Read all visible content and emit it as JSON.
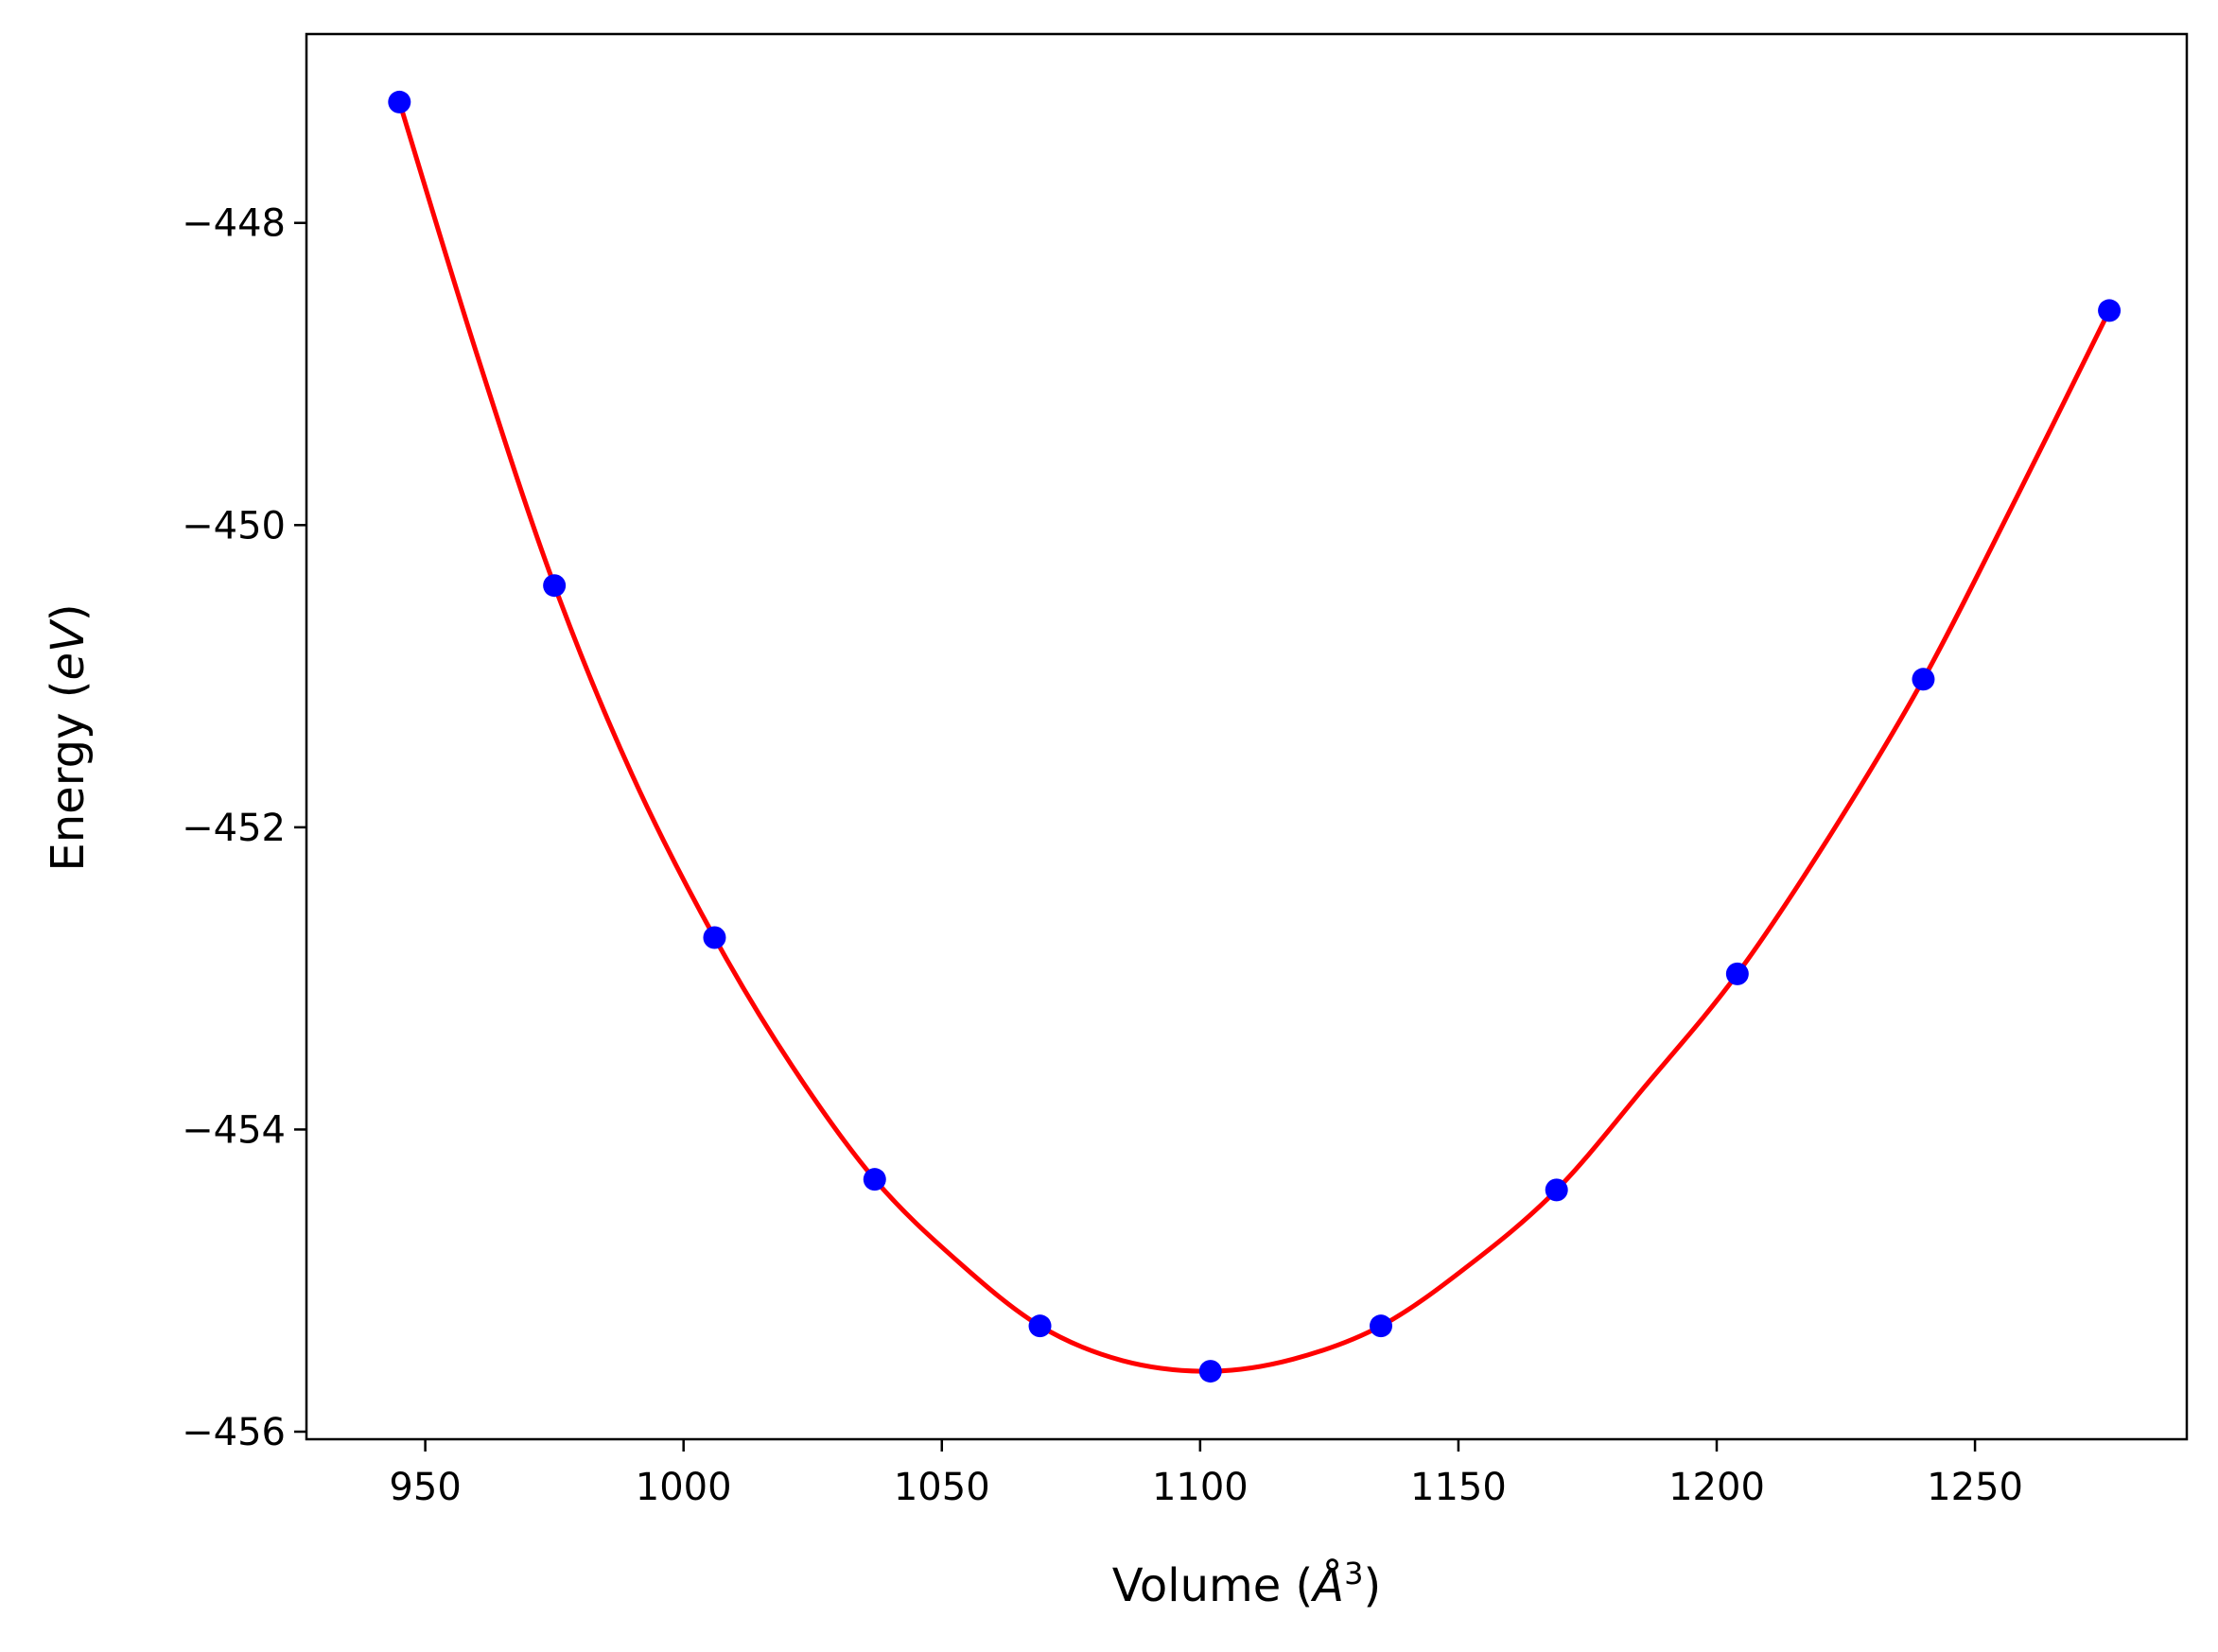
{
  "chart_data": {
    "type": "line",
    "xlabel": {
      "prefix": "Volume (",
      "symbol": "Å",
      "sup": "3",
      "suffix": ")"
    },
    "ylabel": {
      "prefix": "Energy (",
      "symbol": "eV",
      "suffix": ")"
    },
    "xlim": [
      927,
      1291
    ],
    "ylim": [
      -456.05,
      -446.75
    ],
    "xticks": [
      950,
      1000,
      1050,
      1100,
      1150,
      1200,
      1250
    ],
    "yticks": [
      -448,
      -450,
      -452,
      -454,
      -456
    ],
    "ytick_labels": [
      "−448",
      "−450",
      "−452",
      "−454",
      "−456"
    ],
    "grid": false,
    "series": [
      {
        "kind": "markers",
        "color": "#0000ff",
        "x": [
          945,
          975,
          1006,
          1037,
          1069,
          1102,
          1135,
          1169,
          1204,
          1240,
          1276
        ],
        "y": [
          -447.2,
          -450.4,
          -452.73,
          -454.33,
          -455.3,
          -455.6,
          -455.3,
          -454.4,
          -452.97,
          -451.02,
          -448.58
        ]
      },
      {
        "kind": "fit-curve",
        "color": "#ff0000",
        "x": [
          945,
          960,
          975,
          990,
          1006,
          1021,
          1037,
          1053,
          1069,
          1085,
          1102,
          1118,
          1135,
          1152,
          1169,
          1186,
          1204,
          1222,
          1240,
          1258,
          1276
        ],
        "y": [
          -447.2,
          -448.87,
          -450.4,
          -451.65,
          -452.73,
          -453.58,
          -454.33,
          -454.87,
          -455.3,
          -455.53,
          -455.6,
          -455.52,
          -455.3,
          -454.9,
          -454.4,
          -453.72,
          -452.97,
          -452.05,
          -451.02,
          -449.82,
          -448.58
        ]
      }
    ]
  }
}
